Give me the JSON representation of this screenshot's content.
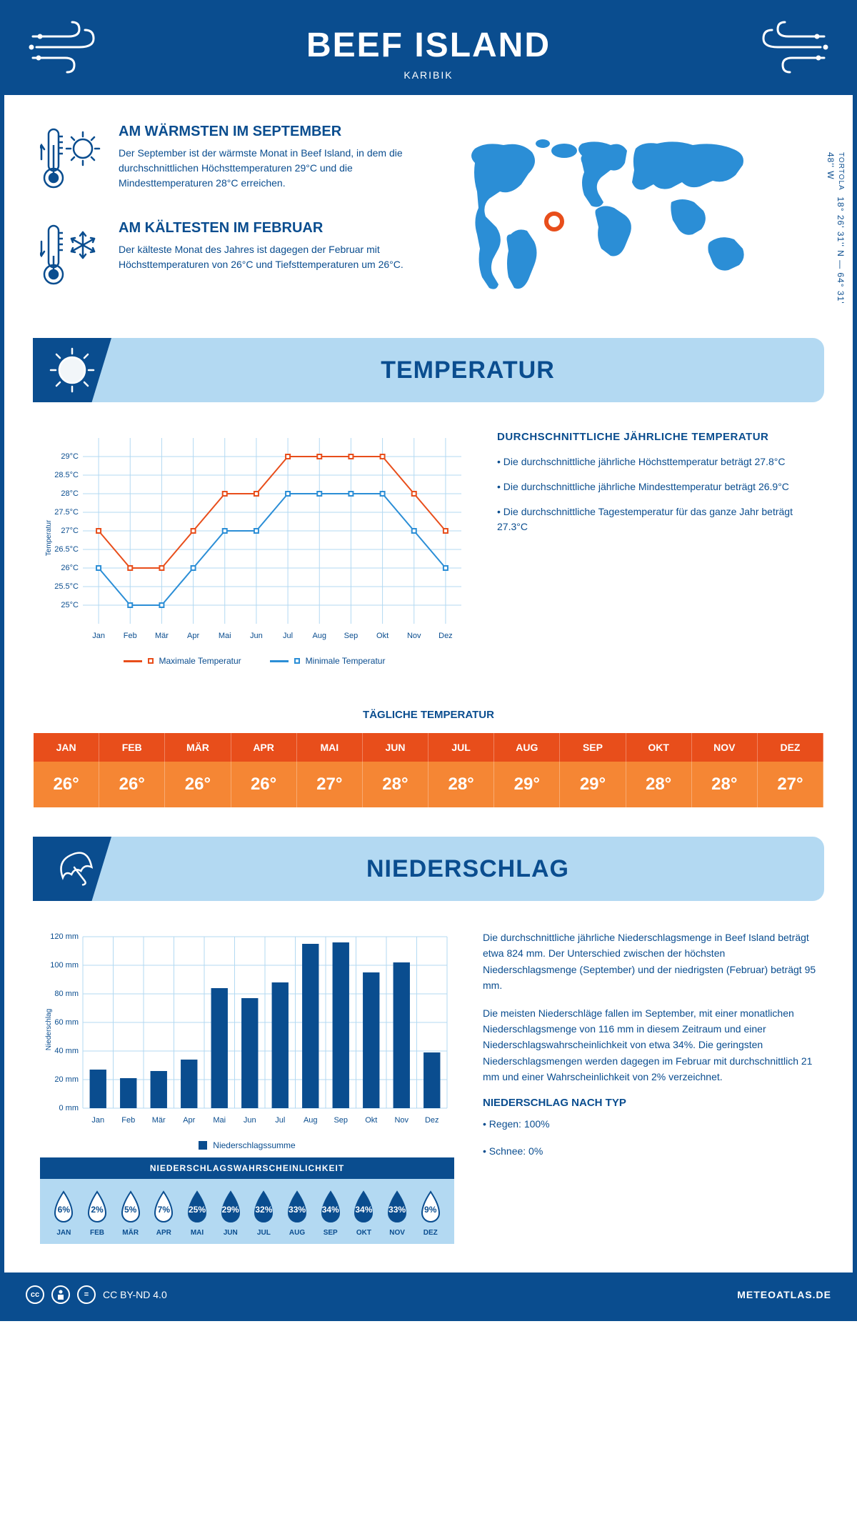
{
  "header": {
    "title": "BEEF ISLAND",
    "subtitle": "KARIBIK"
  },
  "location": {
    "name": "TORTOLA",
    "coords": "18° 26' 31'' N — 64° 31' 48'' W"
  },
  "warmest": {
    "title": "AM WÄRMSTEN IM SEPTEMBER",
    "text": "Der September ist der wärmste Monat in Beef Island, in dem die durchschnittlichen Höchsttemperaturen 29°C und die Mindesttemperaturen 28°C erreichen."
  },
  "coldest": {
    "title": "AM KÄLTESTEN IM FEBRUAR",
    "text": "Der kälteste Monat des Jahres ist dagegen der Februar mit Höchsttemperaturen von 26°C und Tiefsttemperaturen um 26°C."
  },
  "sections": {
    "temperature": "TEMPERATUR",
    "precipitation": "NIEDERSCHLAG"
  },
  "months": [
    "Jan",
    "Feb",
    "Mär",
    "Apr",
    "Mai",
    "Jun",
    "Jul",
    "Aug",
    "Sep",
    "Okt",
    "Nov",
    "Dez"
  ],
  "months_upper": [
    "JAN",
    "FEB",
    "MÄR",
    "APR",
    "MAI",
    "JUN",
    "JUL",
    "AUG",
    "SEP",
    "OKT",
    "NOV",
    "DEZ"
  ],
  "temp_chart": {
    "ylabel": "Temperatur",
    "ylim": [
      24.5,
      29.5
    ],
    "yticks": [
      25,
      25.5,
      26,
      26.5,
      27,
      27.5,
      28,
      28.5,
      29
    ],
    "ytick_labels": [
      "25°C",
      "25.5°C",
      "26°C",
      "26.5°C",
      "27°C",
      "27.5°C",
      "28°C",
      "28.5°C",
      "29°C"
    ],
    "max_series": {
      "label": "Maximale Temperatur",
      "color": "#e84e1b",
      "values": [
        27,
        26,
        26,
        27,
        28,
        28,
        29,
        29,
        29,
        29,
        28,
        27
      ]
    },
    "min_series": {
      "label": "Minimale Temperatur",
      "color": "#2b8ed6",
      "values": [
        26,
        25,
        25,
        26,
        27,
        27,
        28,
        28,
        28,
        28,
        27,
        26
      ]
    },
    "line_width": 2,
    "marker": "square",
    "marker_size": 6,
    "grid_color": "#b3d9f2",
    "background": "#ffffff"
  },
  "temp_info": {
    "heading": "DURCHSCHNITTLICHE JÄHRLICHE TEMPERATUR",
    "bullets": [
      "• Die durchschnittliche jährliche Höchsttemperatur beträgt 27.8°C",
      "• Die durchschnittliche jährliche Mindesttemperatur beträgt 26.9°C",
      "• Die durchschnittliche Tagestemperatur für das ganze Jahr beträgt 27.3°C"
    ]
  },
  "daily_temp": {
    "heading": "TÄGLICHE TEMPERATUR",
    "values": [
      "26°",
      "26°",
      "26°",
      "26°",
      "27°",
      "28°",
      "28°",
      "29°",
      "29°",
      "28°",
      "28°",
      "27°"
    ],
    "header_bg": "#e84e1b",
    "value_bg": "#f58634"
  },
  "precip_chart": {
    "ylabel": "Niederschlag",
    "type": "bar",
    "ylim": [
      0,
      120
    ],
    "yticks": [
      0,
      20,
      40,
      60,
      80,
      100,
      120
    ],
    "ytick_labels": [
      "0 mm",
      "20 mm",
      "40 mm",
      "60 mm",
      "80 mm",
      "100 mm",
      "120 mm"
    ],
    "values": [
      27,
      21,
      26,
      34,
      84,
      77,
      88,
      115,
      116,
      95,
      102,
      39
    ],
    "bar_color": "#0a4d8f",
    "grid_color": "#b3d9f2",
    "legend": "Niederschlagssumme",
    "bar_width": 0.55
  },
  "precip_text": {
    "p1": "Die durchschnittliche jährliche Niederschlagsmenge in Beef Island beträgt etwa 824 mm. Der Unterschied zwischen der höchsten Niederschlagsmenge (September) und der niedrigsten (Februar) beträgt 95 mm.",
    "p2": "Die meisten Niederschläge fallen im September, mit einer monatlichen Niederschlagsmenge von 116 mm in diesem Zeitraum und einer Niederschlagswahrscheinlichkeit von etwa 34%. Die geringsten Niederschlagsmengen werden dagegen im Februar mit durchschnittlich 21 mm und einer Wahrscheinlichkeit von 2% verzeichnet.",
    "type_heading": "NIEDERSCHLAG NACH TYP",
    "types": [
      "• Regen: 100%",
      "• Schnee: 0%"
    ]
  },
  "precip_prob": {
    "heading": "NIEDERSCHLAGSWAHRSCHEINLICHKEIT",
    "values": [
      6,
      2,
      5,
      7,
      25,
      29,
      32,
      33,
      34,
      34,
      33,
      9
    ],
    "dark_color": "#0a4d8f",
    "light_threshold": 10,
    "light_fill": "#ffffff"
  },
  "footer": {
    "license": "CC BY-ND 4.0",
    "site": "METEOATLAS.DE"
  },
  "colors": {
    "primary": "#0a4d8f",
    "light_blue": "#b3d9f2",
    "medium_blue": "#2b8ed6",
    "orange": "#e84e1b",
    "orange_light": "#f58634",
    "white": "#ffffff"
  }
}
